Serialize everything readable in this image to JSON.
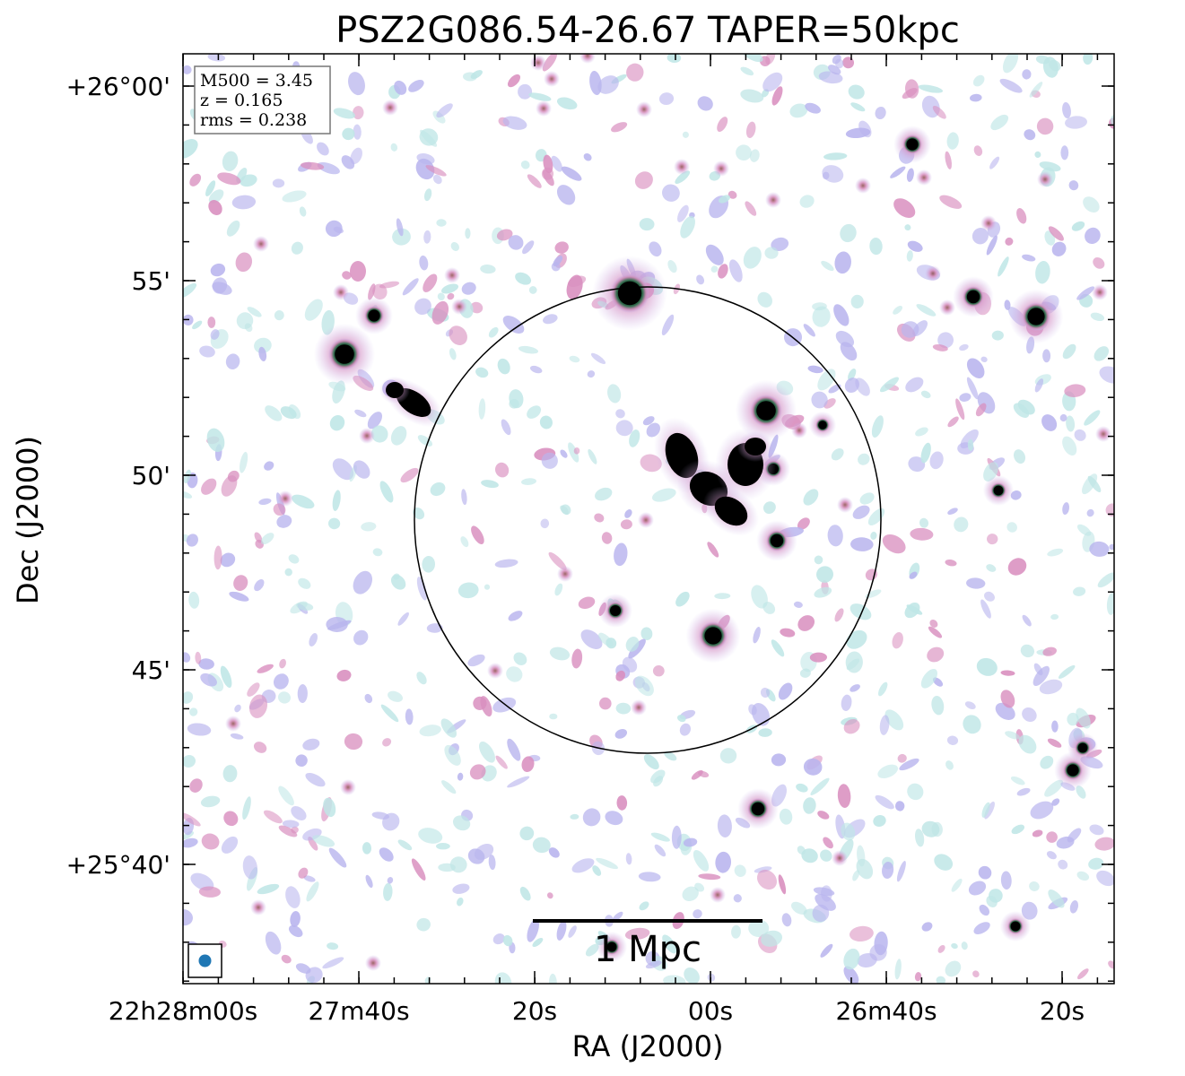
{
  "title": "PSZ2G086.54-26.67 TAPER=50kpc",
  "info_box": {
    "line1": "M500 = 3.45",
    "line2": "z = 0.165",
    "line3": "rms = 0.238"
  },
  "x_axis": {
    "label": "RA (J2000)",
    "ticks": [
      "22h28m00s",
      "27m40s",
      "20s",
      "00s",
      "26m40s",
      "20s"
    ]
  },
  "y_axis": {
    "label": "Dec (J2000)",
    "ticks": [
      "+26°00'",
      "55'",
      "50'",
      "45'",
      "+25°40'"
    ]
  },
  "scale_bar": {
    "label": "1 Mpc"
  },
  "colors": {
    "noise_cyan": "#bfe6e6",
    "noise_lilac": "#b9b5ee",
    "emission_pink": "#d98fbf",
    "emission_green": "#2e6b4a",
    "core_black": "#000000",
    "beam": "#1f77b4"
  }
}
